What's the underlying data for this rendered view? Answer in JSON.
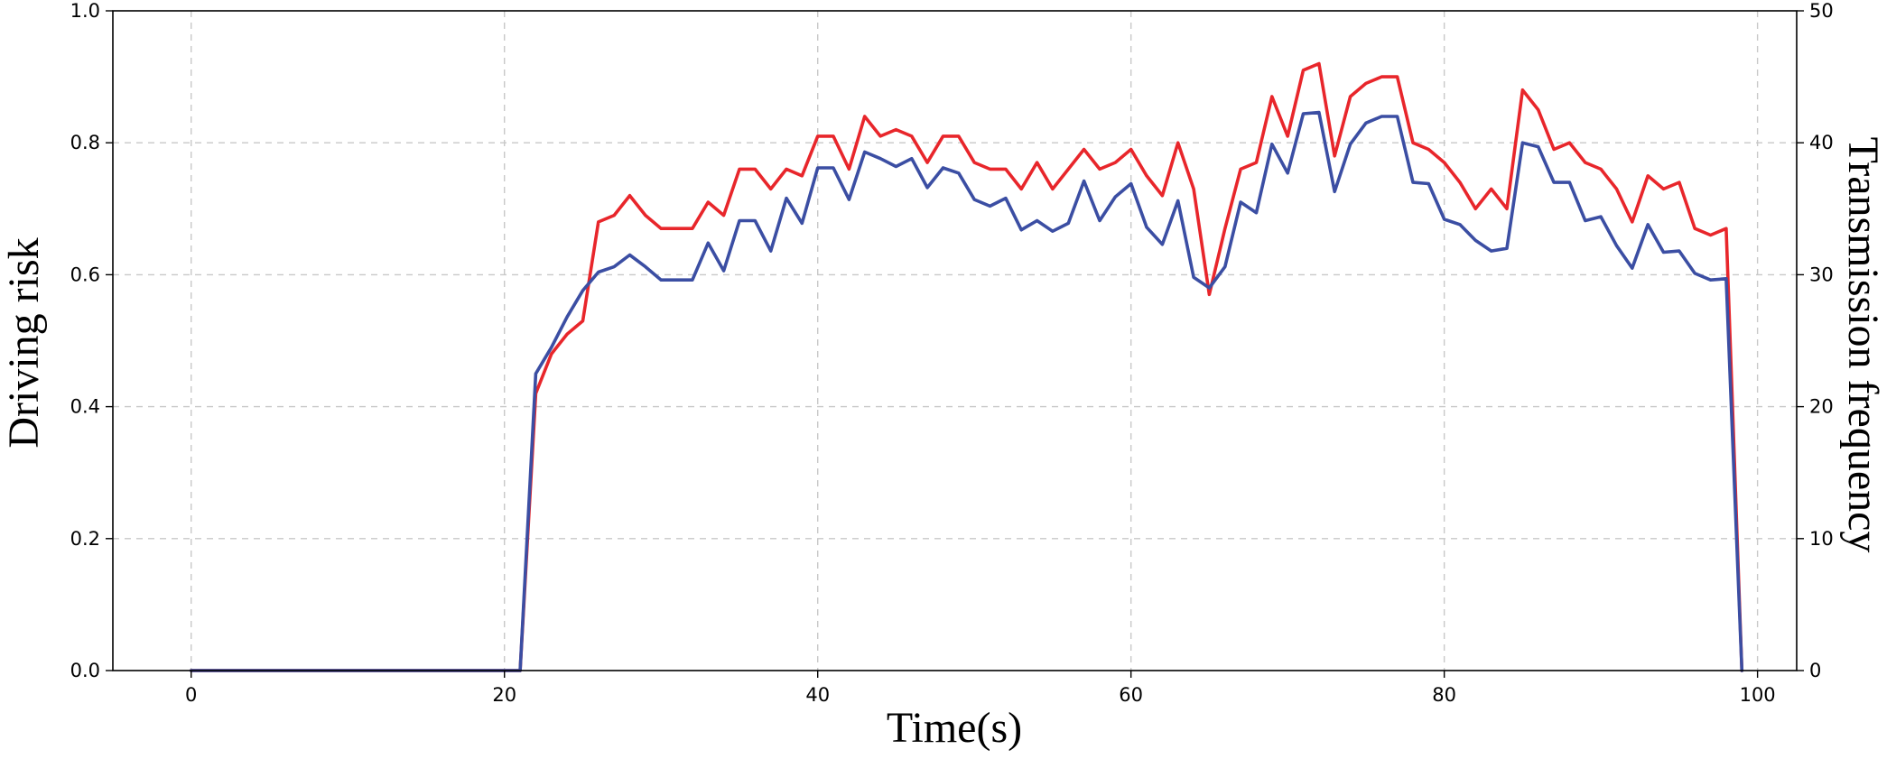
{
  "chart_data": {
    "type": "line",
    "title": "",
    "xlabel": "Time(s)",
    "ylabel": "Driving risk",
    "y2label": "Transmission frequency",
    "xlim": [
      -5,
      102.5
    ],
    "ylim": [
      0,
      1.0
    ],
    "y2lim": [
      0,
      50
    ],
    "xticks": [
      0,
      20,
      40,
      60,
      80,
      100
    ],
    "yticks": [
      "0.0",
      "0.2",
      "0.4",
      "0.6",
      "0.8",
      "1.0"
    ],
    "y2ticks": [
      0,
      10,
      20,
      30,
      40,
      50
    ],
    "grid": true,
    "legend": "none",
    "series": [
      {
        "axis": "left",
        "color": "#e8262b",
        "x": [
          0,
          1,
          2,
          3,
          4,
          5,
          6,
          7,
          8,
          9,
          10,
          11,
          12,
          13,
          14,
          15,
          16,
          17,
          18,
          19,
          20,
          21,
          22,
          23,
          24,
          25,
          26,
          27,
          28,
          29,
          30,
          31,
          32,
          33,
          34,
          35,
          36,
          37,
          38,
          39,
          40,
          41,
          42,
          43,
          44,
          45,
          46,
          47,
          48,
          49,
          50,
          51,
          52,
          53,
          54,
          55,
          56,
          57,
          58,
          59,
          60,
          61,
          62,
          63,
          64,
          65,
          66,
          67,
          68,
          69,
          70,
          71,
          72,
          73,
          74,
          75,
          76,
          77,
          78,
          79,
          80,
          81,
          82,
          83,
          84,
          85,
          86,
          87,
          88,
          89,
          90,
          91,
          92,
          93,
          94,
          95,
          96,
          97,
          98,
          99
        ],
        "values": [
          0,
          0,
          0,
          0,
          0,
          0,
          0,
          0,
          0,
          0,
          0,
          0,
          0,
          0,
          0,
          0,
          0,
          0,
          0,
          0,
          0,
          0,
          0.42,
          0.48,
          0.51,
          0.53,
          0.68,
          0.69,
          0.72,
          0.69,
          0.67,
          0.67,
          0.67,
          0.71,
          0.69,
          0.76,
          0.76,
          0.73,
          0.76,
          0.75,
          0.81,
          0.81,
          0.76,
          0.84,
          0.81,
          0.82,
          0.81,
          0.77,
          0.81,
          0.81,
          0.77,
          0.76,
          0.76,
          0.73,
          0.77,
          0.73,
          0.76,
          0.79,
          0.76,
          0.77,
          0.79,
          0.75,
          0.72,
          0.8,
          0.73,
          0.57,
          0.67,
          0.76,
          0.77,
          0.87,
          0.81,
          0.91,
          0.92,
          0.78,
          0.87,
          0.89,
          0.9,
          0.9,
          0.8,
          0.79,
          0.77,
          0.74,
          0.7,
          0.73,
          0.7,
          0.88,
          0.85,
          0.79,
          0.8,
          0.77,
          0.76,
          0.73,
          0.68,
          0.75,
          0.73,
          0.74,
          0.67,
          0.66,
          0.67,
          0.0
        ]
      },
      {
        "axis": "right",
        "color": "#3b4ea3",
        "x": [
          0,
          1,
          2,
          3,
          4,
          5,
          6,
          7,
          8,
          9,
          10,
          11,
          12,
          13,
          14,
          15,
          16,
          17,
          18,
          19,
          20,
          21,
          22,
          23,
          24,
          25,
          26,
          27,
          28,
          29,
          30,
          31,
          32,
          33,
          34,
          35,
          36,
          37,
          38,
          39,
          40,
          41,
          42,
          43,
          44,
          45,
          46,
          47,
          48,
          49,
          50,
          51,
          52,
          53,
          54,
          55,
          56,
          57,
          58,
          59,
          60,
          61,
          62,
          63,
          64,
          65,
          66,
          67,
          68,
          69,
          70,
          71,
          72,
          73,
          74,
          75,
          76,
          77,
          78,
          79,
          80,
          81,
          82,
          83,
          84,
          85,
          86,
          87,
          88,
          89,
          90,
          91,
          92,
          93,
          94,
          95,
          96,
          97,
          98,
          99
        ],
        "values": [
          0,
          0,
          0,
          0,
          0,
          0,
          0,
          0,
          0,
          0,
          0,
          0,
          0,
          0,
          0,
          0,
          0,
          0,
          0,
          0,
          0,
          0,
          22.5,
          24.5,
          26.8,
          28.8,
          30.2,
          30.6,
          31.5,
          30.6,
          29.6,
          29.6,
          29.6,
          32.4,
          30.3,
          34.1,
          34.1,
          31.8,
          35.8,
          33.9,
          38.1,
          38.1,
          35.7,
          39.3,
          38.8,
          38.2,
          38.8,
          36.6,
          38.1,
          37.7,
          35.7,
          35.2,
          35.8,
          33.4,
          34.1,
          33.3,
          33.9,
          37.1,
          34.1,
          35.9,
          36.9,
          33.6,
          32.3,
          35.6,
          29.8,
          29.0,
          30.6,
          35.5,
          34.7,
          39.9,
          37.7,
          42.2,
          42.3,
          36.3,
          39.9,
          41.5,
          42.0,
          42.0,
          37.0,
          36.9,
          34.2,
          33.8,
          32.6,
          31.8,
          32.0,
          40.0,
          39.7,
          37.0,
          37.0,
          34.1,
          34.4,
          32.2,
          30.5,
          33.8,
          31.7,
          31.8,
          30.1,
          29.6,
          29.7,
          0.0
        ]
      }
    ]
  }
}
